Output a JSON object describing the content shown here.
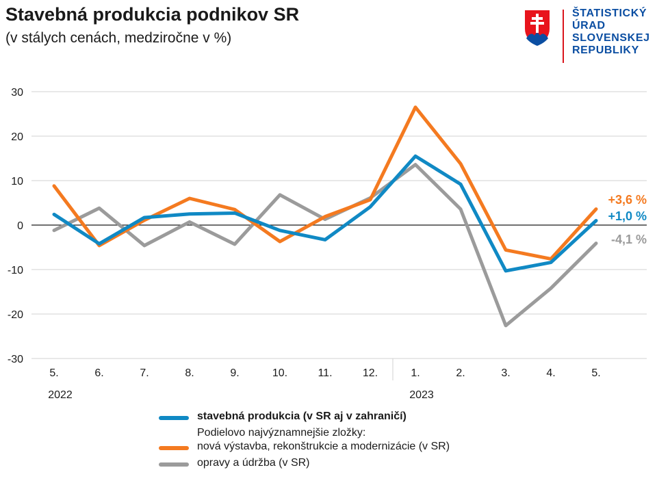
{
  "header": {
    "title": "Stavebná produkcia podnikov SR",
    "subtitle": "(v stálych cenách, medziročne v %)"
  },
  "logo": {
    "icon": "slovak-coat-of-arms",
    "lines": [
      "ŠTATISTICKÝ",
      "ÚRAD",
      "SLOVENSKEJ",
      "REPUBLIKY"
    ],
    "color": "#0b4ea2",
    "accent": "#d9141b"
  },
  "chart_data": {
    "type": "line",
    "title": "Stavebná produkcia podnikov SR",
    "subtitle": "(v stálych cenách, medziročne v %)",
    "categories": [
      "5.",
      "6.",
      "7.",
      "8.",
      "9.",
      "10.",
      "11.",
      "12.",
      "1.",
      "2.",
      "3.",
      "4.",
      "5."
    ],
    "year_labels": [
      {
        "label": "2022",
        "at": 0
      },
      {
        "label": "2023",
        "at": 8
      }
    ],
    "ylim": [
      -30,
      30
    ],
    "yticks": [
      30,
      20,
      10,
      0,
      -10,
      -20,
      -30
    ],
    "grid": true,
    "series": [
      {
        "name": "stavebná produkcia (v SR aj v zahraničí)",
        "color": "#1089c4",
        "values": [
          2.4,
          -4.2,
          1.7,
          2.5,
          2.7,
          -1.2,
          -3.3,
          4.1,
          15.5,
          9.2,
          -10.3,
          -8.4,
          1.0
        ],
        "end_label": "+1,0 %"
      },
      {
        "name": "nová výstavba, rekonštrukcie a modernizácie (v SR)",
        "color": "#f47a20",
        "values": [
          8.8,
          -4.6,
          1.1,
          6.0,
          3.5,
          -3.7,
          1.9,
          5.7,
          26.5,
          13.8,
          -5.6,
          -7.6,
          3.6
        ],
        "end_label": "+3,6 %"
      },
      {
        "name": "opravy a údržba (v SR)",
        "color": "#9b9b9b",
        "values": [
          -1.2,
          3.8,
          -4.6,
          0.7,
          -4.3,
          6.8,
          1.3,
          6.1,
          13.6,
          3.6,
          -22.6,
          -14.2,
          -4.1
        ],
        "end_label": "-4,1 %"
      }
    ],
    "legend": {
      "placement": "bottom",
      "subheading": "Podielovo najvýznamnejšie zložky:"
    }
  }
}
